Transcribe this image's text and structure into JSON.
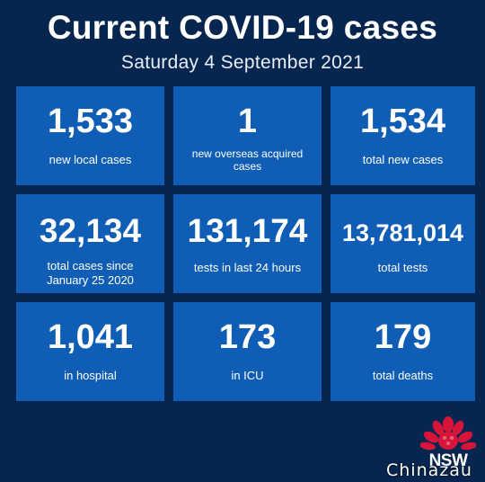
{
  "header": {
    "title": "Current COVID-19 cases",
    "date": "Saturday 4 September 2021"
  },
  "cards": [
    {
      "value": "1,533",
      "label": "new local cases"
    },
    {
      "value": "1",
      "label": "new overseas acquired cases"
    },
    {
      "value": "1,534",
      "label": "total new cases"
    },
    {
      "value": "32,134",
      "label": "total cases since January 25 2020"
    },
    {
      "value": "131,174",
      "label": "tests in last 24 hours"
    },
    {
      "value": "13,781,014",
      "label": "total tests"
    },
    {
      "value": "1,041",
      "label": "in hospital"
    },
    {
      "value": "173",
      "label": "in ICU"
    },
    {
      "value": "179",
      "label": "total deaths"
    }
  ],
  "logo": {
    "text": "NSW",
    "icon": "waratah-flower-icon",
    "color": "#d7153a"
  },
  "watermark": "Chinazau",
  "colors": {
    "background": "#06264f",
    "card": "#0f5db5",
    "text": "#ffffff"
  }
}
